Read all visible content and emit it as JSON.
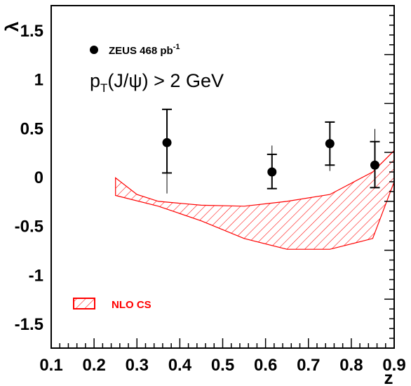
{
  "chart_data": {
    "type": "scatter",
    "title": "",
    "xlabel": "z",
    "ylabel": "λ",
    "xlim": [
      0.1,
      0.9
    ],
    "ylim": [
      -1.75,
      1.75
    ],
    "xticks": [
      "0.1",
      "0.2",
      "0.3",
      "0.4",
      "0.5",
      "0.6",
      "0.7",
      "0.8",
      "0.9"
    ],
    "yticks": [
      "-1.5",
      "-1",
      "-0.5",
      "0",
      "0.5",
      "1",
      "1.5"
    ],
    "grid": false,
    "annotation": {
      "main": "p",
      "sub": "T",
      "rest": "(J/ψ) > 2 GeV"
    },
    "legend_position": "top-left",
    "series": [
      {
        "name": "ZEUS 468 pb",
        "name_sup": "-1",
        "color": "#000000",
        "points": [
          {
            "x": 0.37,
            "y": 0.35,
            "stat_lo": 0.04,
            "stat_hi": 0.69,
            "tot_lo": -0.17,
            "tot_hi": 0.69
          },
          {
            "x": 0.615,
            "y": 0.05,
            "stat_lo": -0.12,
            "stat_hi": 0.23,
            "tot_lo": -0.12,
            "tot_hi": 0.32
          },
          {
            "x": 0.75,
            "y": 0.34,
            "stat_lo": 0.12,
            "stat_hi": 0.56,
            "tot_lo": 0.06,
            "tot_hi": 0.56
          },
          {
            "x": 0.855,
            "y": 0.12,
            "stat_lo": -0.11,
            "stat_hi": 0.36,
            "tot_lo": -0.11,
            "tot_hi": 0.49
          }
        ]
      },
      {
        "name": "NLO CS",
        "type": "band",
        "color": "#ff0000",
        "upper": [
          [
            0.25,
            -0.01
          ],
          [
            0.3,
            -0.18
          ],
          [
            0.35,
            -0.25
          ],
          [
            0.45,
            -0.29
          ],
          [
            0.55,
            -0.3
          ],
          [
            0.65,
            -0.25
          ],
          [
            0.75,
            -0.18
          ],
          [
            0.85,
            0.05
          ],
          [
            0.9,
            0.27
          ]
        ],
        "lower": [
          [
            0.25,
            -0.19
          ],
          [
            0.35,
            -0.3
          ],
          [
            0.45,
            -0.45
          ],
          [
            0.55,
            -0.63
          ],
          [
            0.65,
            -0.74
          ],
          [
            0.75,
            -0.74
          ],
          [
            0.85,
            -0.63
          ],
          [
            0.9,
            -0.05
          ]
        ]
      }
    ]
  }
}
